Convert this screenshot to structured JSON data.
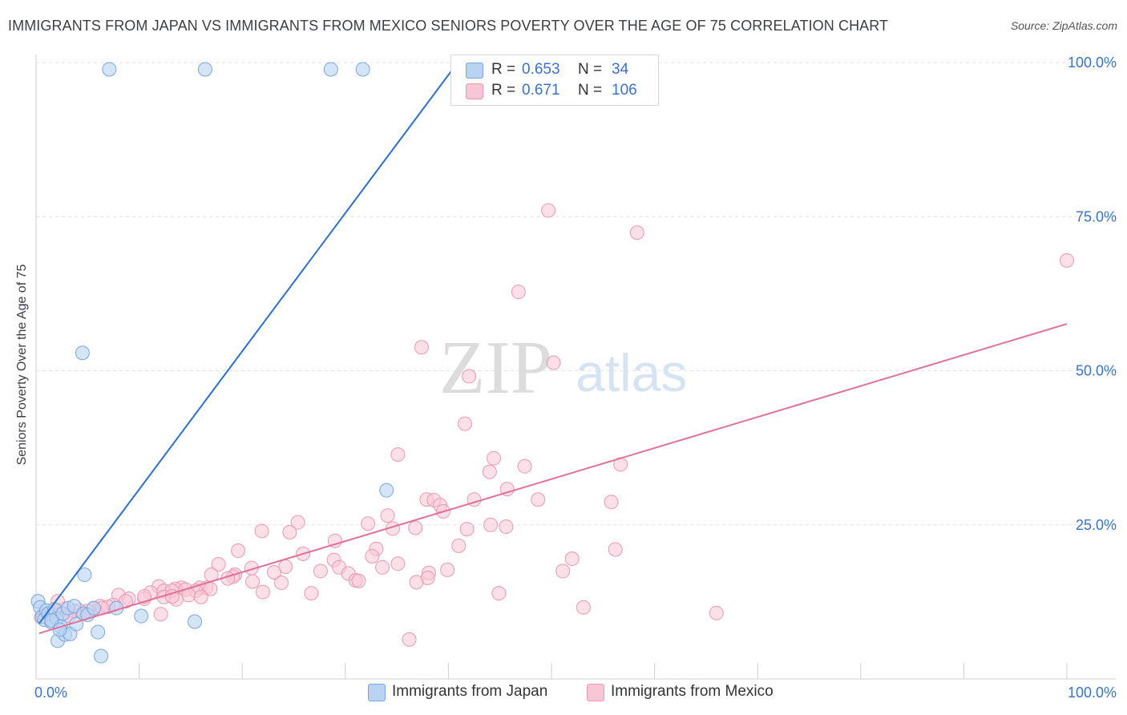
{
  "title": "IMMIGRANTS FROM JAPAN VS IMMIGRANTS FROM MEXICO SENIORS POVERTY OVER THE AGE OF 75 CORRELATION CHART",
  "source": "Source: ZipAtlas.com",
  "watermark": {
    "zip": "ZIP",
    "atlas": "atlas"
  },
  "legend_stats": [
    {
      "r_label": "R =",
      "r_value": "0.653",
      "n_label": "N =",
      "n_value": "34"
    },
    {
      "r_label": "R =",
      "r_value": "0.671",
      "n_label": "N =",
      "n_value": "106"
    }
  ],
  "legend_bottom": [
    {
      "label": "Immigrants from Japan"
    },
    {
      "label": "Immigrants from Mexico"
    }
  ],
  "chart_data": {
    "type": "scatter",
    "title": "IMMIGRANTS FROM JAPAN VS IMMIGRANTS FROM MEXICO SENIORS POVERTY OVER THE AGE OF 75 CORRELATION CHART",
    "xlabel": "",
    "ylabel": "Seniors Poverty Over the Age of 75",
    "xlim": [
      0,
      100
    ],
    "ylim": [
      0,
      100
    ],
    "x_tick_labels": [
      "0.0%",
      "100.0%"
    ],
    "y_ticks": [
      25,
      50,
      75,
      100
    ],
    "y_tick_labels": [
      "25.0%",
      "50.0%",
      "75.0%",
      "100.0%"
    ],
    "grid": true,
    "colors": {
      "japan_fill": "#b9d3f3",
      "japan_stroke": "#7aa6dd",
      "japan_line": "#2c6fcc",
      "mexico_fill": "#f9c6d6",
      "mexico_stroke": "#ec98b3",
      "mexico_line": "#e0719a",
      "axis_label": "#3a73c9"
    },
    "series": [
      {
        "name": "Immigrants from Japan",
        "R": 0.653,
        "N": 34,
        "trend": {
          "x0": 0.3,
          "y0": 9,
          "x1": 40.9,
          "y1": 100
        },
        "points": [
          [
            7.1,
            98.9
          ],
          [
            16.4,
            98.9
          ],
          [
            28.6,
            98.9
          ],
          [
            31.7,
            98.9
          ],
          [
            4.5,
            52.9
          ],
          [
            34.0,
            30.6
          ],
          [
            4.7,
            16.9
          ],
          [
            0.2,
            12.6
          ],
          [
            0.4,
            11.6
          ],
          [
            0.6,
            10.1
          ],
          [
            0.8,
            9.6
          ],
          [
            1.0,
            11.1
          ],
          [
            1.2,
            10.6
          ],
          [
            1.5,
            9.2
          ],
          [
            1.8,
            11.3
          ],
          [
            2.0,
            9.8
          ],
          [
            2.1,
            6.2
          ],
          [
            2.4,
            8.5
          ],
          [
            2.6,
            10.6
          ],
          [
            2.8,
            7.2
          ],
          [
            3.1,
            11.5
          ],
          [
            3.3,
            7.3
          ],
          [
            3.7,
            11.8
          ],
          [
            3.9,
            8.9
          ],
          [
            4.6,
            10.6
          ],
          [
            5.0,
            10.4
          ],
          [
            6.0,
            7.6
          ],
          [
            6.3,
            3.7
          ],
          [
            1.5,
            9.5
          ],
          [
            2.3,
            8.0
          ],
          [
            5.6,
            11.5
          ],
          [
            7.8,
            11.5
          ],
          [
            10.2,
            10.2
          ],
          [
            15.4,
            9.3
          ]
        ]
      },
      {
        "name": "Immigrants from Mexico",
        "R": 0.671,
        "N": 106,
        "trend": {
          "x0": 0.3,
          "y0": 7.4,
          "x1": 100,
          "y1": 57.6
        },
        "points": [
          [
            49.7,
            76.0
          ],
          [
            58.3,
            72.4
          ],
          [
            100.0,
            67.9
          ],
          [
            46.8,
            62.8
          ],
          [
            37.4,
            53.8
          ],
          [
            50.2,
            51.3
          ],
          [
            42.0,
            49.1
          ],
          [
            41.6,
            41.4
          ],
          [
            35.1,
            36.4
          ],
          [
            44.4,
            35.8
          ],
          [
            56.7,
            34.8
          ],
          [
            47.4,
            34.5
          ],
          [
            44.0,
            33.6
          ],
          [
            45.7,
            30.8
          ],
          [
            37.9,
            29.1
          ],
          [
            38.6,
            29.0
          ],
          [
            39.2,
            28.2
          ],
          [
            42.5,
            29.1
          ],
          [
            48.7,
            29.1
          ],
          [
            55.8,
            28.7
          ],
          [
            39.5,
            27.2
          ],
          [
            34.1,
            26.5
          ],
          [
            25.4,
            25.4
          ],
          [
            32.2,
            25.2
          ],
          [
            44.1,
            25.0
          ],
          [
            45.6,
            24.7
          ],
          [
            36.8,
            24.5
          ],
          [
            34.6,
            24.4
          ],
          [
            41.8,
            24.3
          ],
          [
            21.9,
            24.0
          ],
          [
            24.6,
            23.8
          ],
          [
            29.0,
            22.4
          ],
          [
            41.0,
            21.6
          ],
          [
            33.0,
            21.1
          ],
          [
            19.6,
            20.8
          ],
          [
            25.9,
            20.3
          ],
          [
            32.6,
            19.9
          ],
          [
            52.0,
            19.5
          ],
          [
            56.2,
            21.0
          ],
          [
            28.9,
            19.3
          ],
          [
            35.1,
            18.7
          ],
          [
            17.7,
            18.6
          ],
          [
            24.2,
            18.2
          ],
          [
            29.4,
            18.1
          ],
          [
            33.6,
            18.1
          ],
          [
            20.9,
            18.0
          ],
          [
            27.6,
            17.5
          ],
          [
            23.1,
            17.3
          ],
          [
            38.1,
            17.2
          ],
          [
            39.9,
            17.7
          ],
          [
            30.3,
            17.1
          ],
          [
            19.3,
            16.9
          ],
          [
            17.0,
            16.9
          ],
          [
            19.1,
            16.6
          ],
          [
            18.6,
            16.3
          ],
          [
            31.0,
            16.0
          ],
          [
            38.0,
            16.4
          ],
          [
            51.1,
            17.5
          ],
          [
            31.3,
            15.9
          ],
          [
            36.9,
            15.7
          ],
          [
            21.0,
            15.8
          ],
          [
            23.8,
            15.6
          ],
          [
            11.9,
            15.0
          ],
          [
            14.1,
            14.8
          ],
          [
            15.9,
            14.8
          ],
          [
            16.5,
            14.8
          ],
          [
            13.5,
            14.6
          ],
          [
            14.5,
            14.5
          ],
          [
            15.5,
            14.3
          ],
          [
            12.4,
            14.3
          ],
          [
            13.2,
            14.3
          ],
          [
            16.9,
            14.6
          ],
          [
            22.0,
            14.1
          ],
          [
            26.7,
            13.9
          ],
          [
            11.1,
            14.0
          ],
          [
            14.8,
            13.6
          ],
          [
            12.4,
            13.3
          ],
          [
            16.0,
            13.3
          ],
          [
            8.0,
            13.6
          ],
          [
            10.5,
            13.0
          ],
          [
            13.6,
            12.9
          ],
          [
            10.5,
            13.4
          ],
          [
            13.2,
            13.4
          ],
          [
            9.0,
            13.0
          ],
          [
            44.9,
            13.9
          ],
          [
            8.7,
            12.6
          ],
          [
            7.5,
            12.0
          ],
          [
            6.2,
            11.8
          ],
          [
            7.0,
            11.7
          ],
          [
            5.6,
            11.4
          ],
          [
            2.7,
            11.3
          ],
          [
            4.2,
            11.1
          ],
          [
            3.7,
            11.0
          ],
          [
            5.0,
            11.0
          ],
          [
            1.4,
            10.6
          ],
          [
            2.9,
            10.3
          ],
          [
            6.4,
            11.5
          ],
          [
            0.7,
            10.4
          ],
          [
            53.1,
            11.6
          ],
          [
            66.0,
            10.7
          ],
          [
            36.2,
            6.4
          ],
          [
            12.1,
            10.5
          ],
          [
            0.5,
            10.0
          ],
          [
            3.2,
            10.2
          ],
          [
            2.1,
            12.6
          ],
          [
            2.0,
            11.0
          ]
        ]
      }
    ]
  }
}
